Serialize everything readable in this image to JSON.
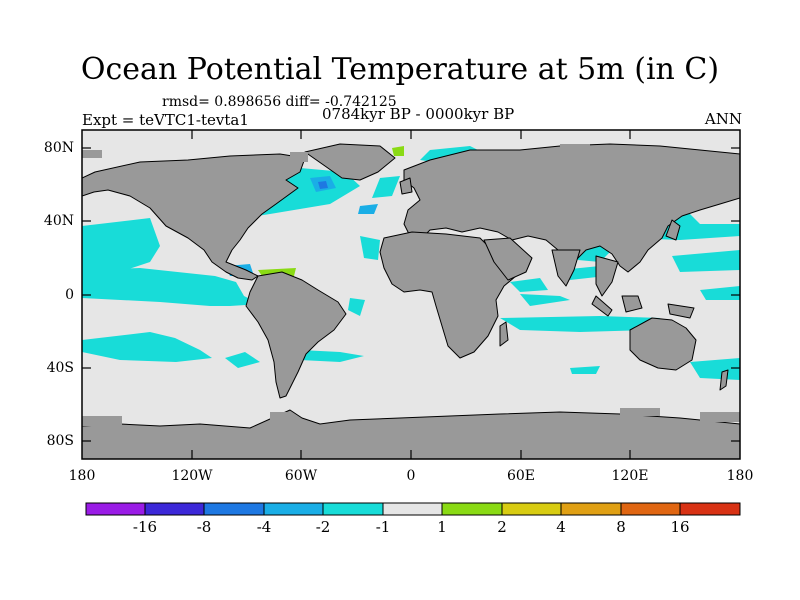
{
  "title": "Ocean Potential Temperature at 5m (in C)",
  "stats": "rmsd= 0.898656 diff= -0.742125",
  "experiment": "Expt = teVTC1-tevta1",
  "period": "0784kyr BP - 0000kyr BP",
  "season": "ANN",
  "axes": {
    "y_ticks": [
      "80N",
      "40N",
      "0",
      "40S",
      "80S"
    ],
    "x_ticks": [
      "180",
      "120W",
      "60W",
      "0",
      "60E",
      "120E",
      "180"
    ]
  },
  "colorbar": {
    "labels": [
      "-16",
      "-8",
      "-4",
      "-2",
      "-1",
      "1",
      "2",
      "4",
      "8",
      "16"
    ],
    "colors": [
      "#9a1ce6",
      "#3c28d8",
      "#1e78e2",
      "#1aaee6",
      "#18dcd8",
      "#e6e6e6",
      "#8ada14",
      "#d8cc12",
      "#e0a014",
      "#e06612",
      "#d83214"
    ]
  },
  "colors": {
    "land": "#999999",
    "ocean_neutral": "#e6e6e6",
    "cooling_light": "#18dcd8",
    "cooling_medium": "#1aaee6",
    "cooling_strong": "#1e78e2",
    "warming_light": "#8ada14"
  }
}
